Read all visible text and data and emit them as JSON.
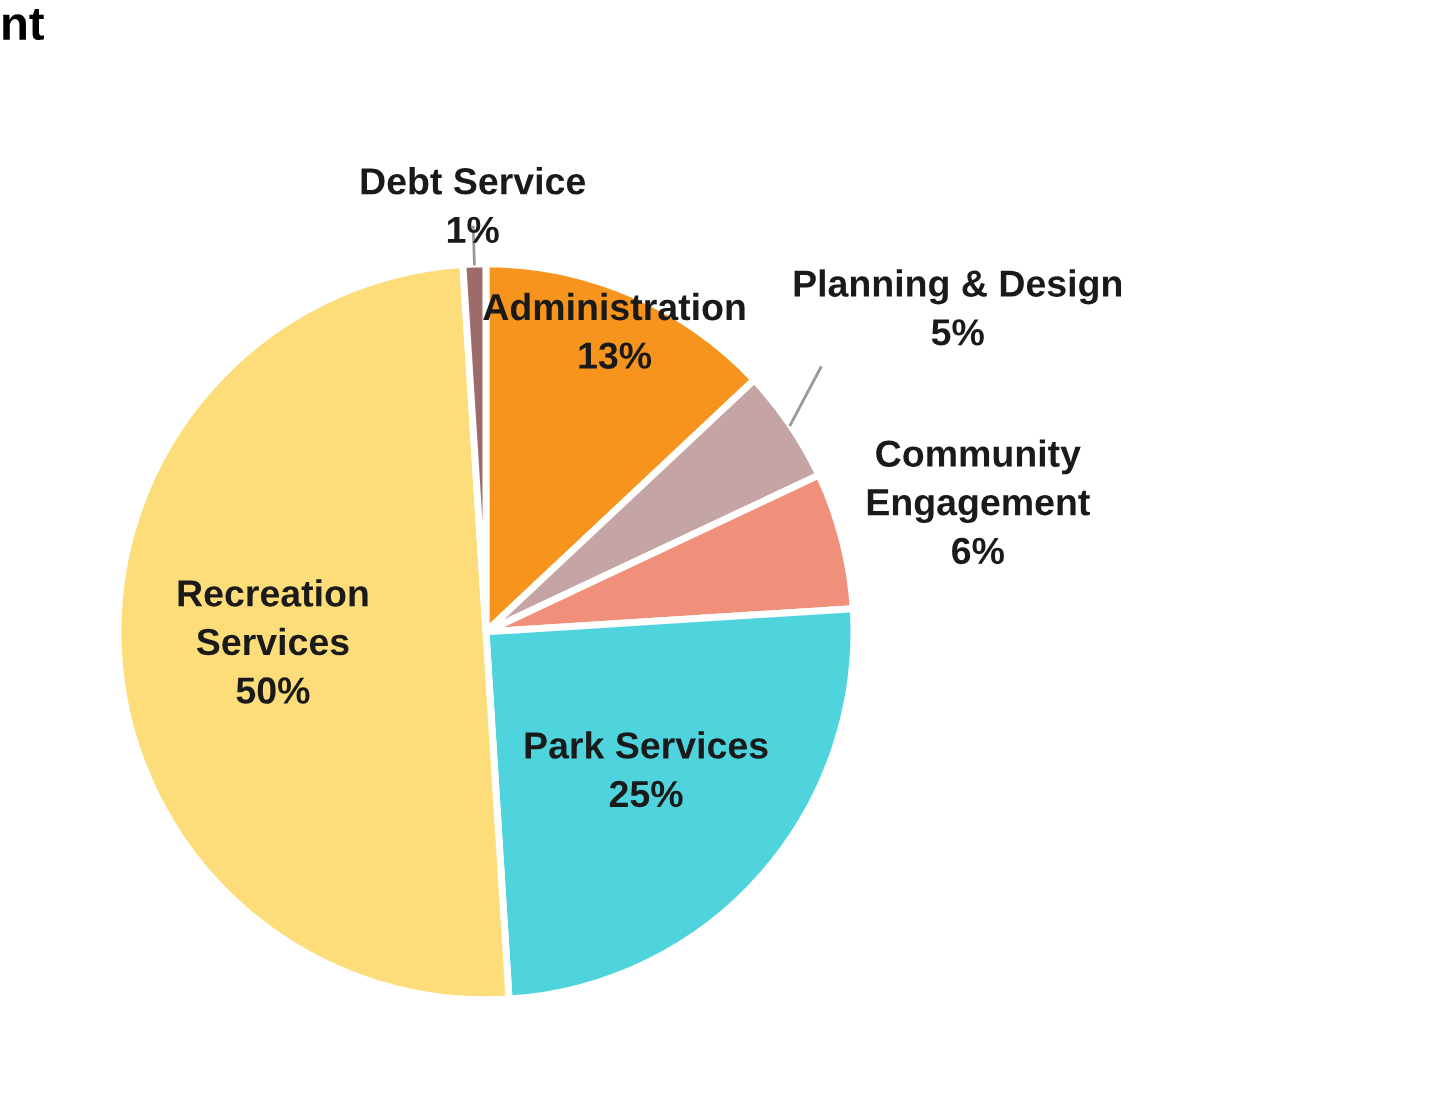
{
  "chart_data": {
    "type": "pie",
    "title": "nt",
    "categories": [
      "Administration",
      "Planning & Design",
      "Community Engagement",
      "Park Services",
      "Recreation Services",
      "Debt Service"
    ],
    "values": [
      13,
      5,
      6,
      25,
      50,
      1
    ],
    "value_labels": [
      "13%",
      "5%",
      "6%",
      "25%",
      "50%",
      "1%"
    ],
    "colors": [
      "#f7941d",
      "#c4a4a4",
      "#f0907a",
      "#4fd4de",
      "#fddc7a",
      "#9e6b6b"
    ],
    "legend": false
  }
}
